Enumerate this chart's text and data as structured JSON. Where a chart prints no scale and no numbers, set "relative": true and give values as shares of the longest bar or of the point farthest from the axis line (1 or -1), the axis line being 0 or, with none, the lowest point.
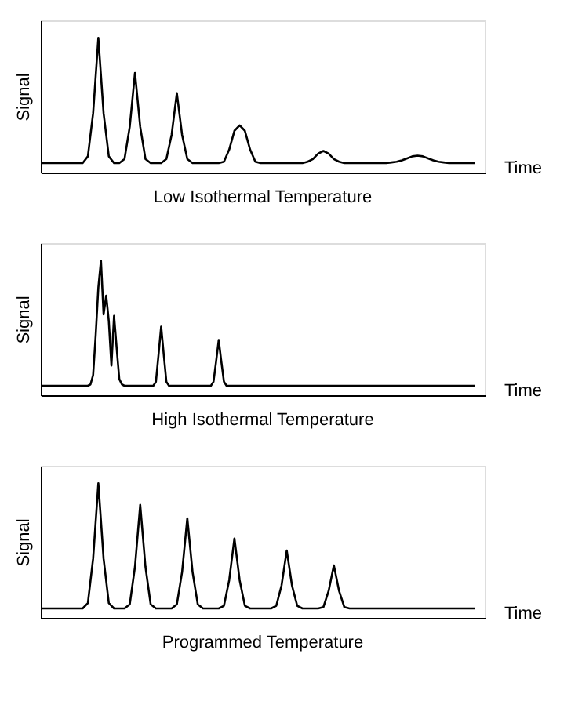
{
  "chart_data": [
    {
      "type": "line",
      "title": "Low Isothermal Temperature",
      "xlabel": "Time",
      "ylabel": "Signal",
      "relative": true,
      "color": "#000000",
      "categories": [
        null,
        null,
        null,
        null,
        null,
        null,
        null,
        null,
        null,
        null,
        null,
        null,
        null,
        null,
        null,
        null,
        null,
        null,
        null,
        null,
        null,
        null,
        null,
        null,
        null,
        null,
        null,
        null,
        null,
        null,
        null,
        null,
        null,
        null,
        null,
        null,
        null,
        null,
        null,
        null,
        null,
        null,
        null,
        null,
        null,
        null,
        null,
        null,
        null,
        null,
        null,
        null,
        null,
        null,
        null,
        null,
        null,
        null,
        null,
        null,
        null,
        null,
        null,
        null,
        null,
        null,
        null,
        null,
        null,
        null,
        null,
        null,
        null,
        null,
        null,
        null,
        null,
        null,
        null,
        null,
        null,
        null,
        null,
        null
      ],
      "values": [
        0.07,
        0.07,
        0.07,
        0.07,
        0.07,
        0.07,
        0.07,
        0.07,
        0.07,
        0.12,
        0.44,
        1.0,
        0.44,
        0.12,
        0.07,
        0.07,
        0.1,
        0.34,
        0.74,
        0.34,
        0.1,
        0.07,
        0.07,
        0.07,
        0.1,
        0.28,
        0.59,
        0.28,
        0.1,
        0.07,
        0.07,
        0.07,
        0.07,
        0.07,
        0.07,
        0.08,
        0.17,
        0.31,
        0.35,
        0.31,
        0.17,
        0.08,
        0.07,
        0.07,
        0.07,
        0.07,
        0.07,
        0.07,
        0.07,
        0.07,
        0.07,
        0.08,
        0.1,
        0.14,
        0.16,
        0.14,
        0.1,
        0.08,
        0.07,
        0.07,
        0.07,
        0.07,
        0.07,
        0.07,
        0.07,
        0.07,
        0.07,
        0.075,
        0.08,
        0.09,
        0.105,
        0.12,
        0.125,
        0.12,
        0.105,
        0.09,
        0.08,
        0.075,
        0.07,
        0.07,
        0.07,
        0.07,
        0.07,
        0.07
      ]
    },
    {
      "type": "line",
      "title": "High Isothermal Temperature",
      "xlabel": "Time",
      "ylabel": "Signal",
      "relative": true,
      "color": "#000000",
      "categories": [
        null,
        null,
        null,
        null,
        null,
        null,
        null,
        null,
        null,
        null,
        null,
        null,
        null,
        null,
        null,
        null,
        null,
        null,
        null,
        null,
        null,
        null,
        null,
        null,
        null,
        null,
        null,
        null,
        null,
        null,
        null,
        null,
        null,
        null,
        null,
        null,
        null,
        null,
        null,
        null,
        null,
        null,
        null,
        null,
        null,
        null,
        null,
        null,
        null,
        null,
        null,
        null,
        null,
        null,
        null,
        null,
        null,
        null,
        null,
        null,
        null,
        null,
        null,
        null,
        null,
        null,
        null,
        null,
        null,
        null,
        null,
        null,
        null,
        null,
        null,
        null,
        null,
        null,
        null,
        null,
        null,
        null,
        null,
        null,
        null,
        null,
        null,
        null,
        null,
        null,
        null,
        null,
        null,
        null,
        null,
        null,
        null,
        null,
        null,
        null,
        null,
        null,
        null,
        null,
        null,
        null,
        null,
        null,
        null,
        null,
        null,
        null,
        null,
        null,
        null,
        null,
        null,
        null,
        null,
        null,
        null,
        null,
        null,
        null,
        null,
        null,
        null,
        null,
        null,
        null,
        null,
        null,
        null,
        null,
        null,
        null,
        null,
        null,
        null,
        null,
        null,
        null,
        null,
        null,
        null,
        null,
        null,
        null,
        null,
        null,
        null,
        null,
        null,
        null,
        null,
        null,
        null,
        null,
        null,
        null,
        null,
        null,
        null,
        null,
        null,
        null,
        null
      ],
      "values": [
        0.07,
        0.07,
        0.07,
        0.07,
        0.07,
        0.07,
        0.07,
        0.07,
        0.07,
        0.07,
        0.07,
        0.07,
        0.07,
        0.07,
        0.07,
        0.07,
        0.07,
        0.07,
        0.07,
        0.08,
        0.15,
        0.45,
        0.8,
        1.0,
        0.6,
        0.74,
        0.55,
        0.22,
        0.59,
        0.35,
        0.12,
        0.08,
        0.07,
        0.07,
        0.07,
        0.07,
        0.07,
        0.07,
        0.07,
        0.07,
        0.07,
        0.07,
        0.07,
        0.07,
        0.1,
        0.3,
        0.51,
        0.3,
        0.1,
        0.07,
        0.07,
        0.07,
        0.07,
        0.07,
        0.07,
        0.07,
        0.07,
        0.07,
        0.07,
        0.07,
        0.07,
        0.07,
        0.07,
        0.07,
        0.07,
        0.07,
        0.1,
        0.25,
        0.41,
        0.25,
        0.1,
        0.07,
        0.07,
        0.07,
        0.07,
        0.07,
        0.07,
        0.07,
        0.07,
        0.07,
        0.07,
        0.07,
        0.07,
        0.07,
        0.07,
        0.07,
        0.07,
        0.07,
        0.07,
        0.07,
        0.07,
        0.07,
        0.07,
        0.07,
        0.07,
        0.07,
        0.07,
        0.07,
        0.07,
        0.07,
        0.07,
        0.07,
        0.07,
        0.07,
        0.07,
        0.07,
        0.07,
        0.07,
        0.07,
        0.07,
        0.07,
        0.07,
        0.07,
        0.07,
        0.07,
        0.07,
        0.07,
        0.07,
        0.07,
        0.07,
        0.07,
        0.07,
        0.07,
        0.07,
        0.07,
        0.07,
        0.07,
        0.07,
        0.07,
        0.07,
        0.07,
        0.07,
        0.07,
        0.07,
        0.07,
        0.07,
        0.07,
        0.07,
        0.07,
        0.07,
        0.07,
        0.07,
        0.07,
        0.07,
        0.07,
        0.07,
        0.07,
        0.07,
        0.07,
        0.07,
        0.07,
        0.07,
        0.07,
        0.07,
        0.07,
        0.07,
        0.07,
        0.07,
        0.07,
        0.07,
        0.07,
        0.07,
        0.07,
        0.07,
        0.07,
        0.07,
        0.07
      ]
    },
    {
      "type": "line",
      "title": "Programmed Temperature",
      "xlabel": "Time",
      "ylabel": "Signal",
      "relative": true,
      "color": "#000000",
      "categories": [
        null,
        null,
        null,
        null,
        null,
        null,
        null,
        null,
        null,
        null,
        null,
        null,
        null,
        null,
        null,
        null,
        null,
        null,
        null,
        null,
        null,
        null,
        null,
        null,
        null,
        null,
        null,
        null,
        null,
        null,
        null,
        null,
        null,
        null,
        null,
        null,
        null,
        null,
        null,
        null,
        null,
        null,
        null,
        null,
        null,
        null,
        null,
        null,
        null,
        null,
        null,
        null,
        null,
        null,
        null,
        null,
        null,
        null,
        null,
        null,
        null,
        null,
        null,
        null,
        null,
        null,
        null,
        null,
        null,
        null,
        null,
        null,
        null,
        null,
        null,
        null,
        null,
        null,
        null,
        null,
        null,
        null,
        null,
        null
      ],
      "values": [
        0.07,
        0.07,
        0.07,
        0.07,
        0.07,
        0.07,
        0.07,
        0.07,
        0.07,
        0.11,
        0.44,
        1.0,
        0.44,
        0.11,
        0.07,
        0.07,
        0.07,
        0.1,
        0.38,
        0.84,
        0.38,
        0.1,
        0.07,
        0.07,
        0.07,
        0.07,
        0.1,
        0.34,
        0.74,
        0.34,
        0.1,
        0.07,
        0.07,
        0.07,
        0.07,
        0.09,
        0.28,
        0.59,
        0.28,
        0.09,
        0.07,
        0.07,
        0.07,
        0.07,
        0.07,
        0.09,
        0.24,
        0.5,
        0.24,
        0.09,
        0.07,
        0.07,
        0.07,
        0.07,
        0.08,
        0.2,
        0.39,
        0.2,
        0.08,
        0.07,
        0.07,
        0.07,
        0.07,
        0.07,
        0.07,
        0.07,
        0.07,
        0.07,
        0.07,
        0.07,
        0.07,
        0.07,
        0.07,
        0.07,
        0.07,
        0.07,
        0.07,
        0.07,
        0.07,
        0.07,
        0.07,
        0.07,
        0.07,
        0.07
      ]
    }
  ]
}
